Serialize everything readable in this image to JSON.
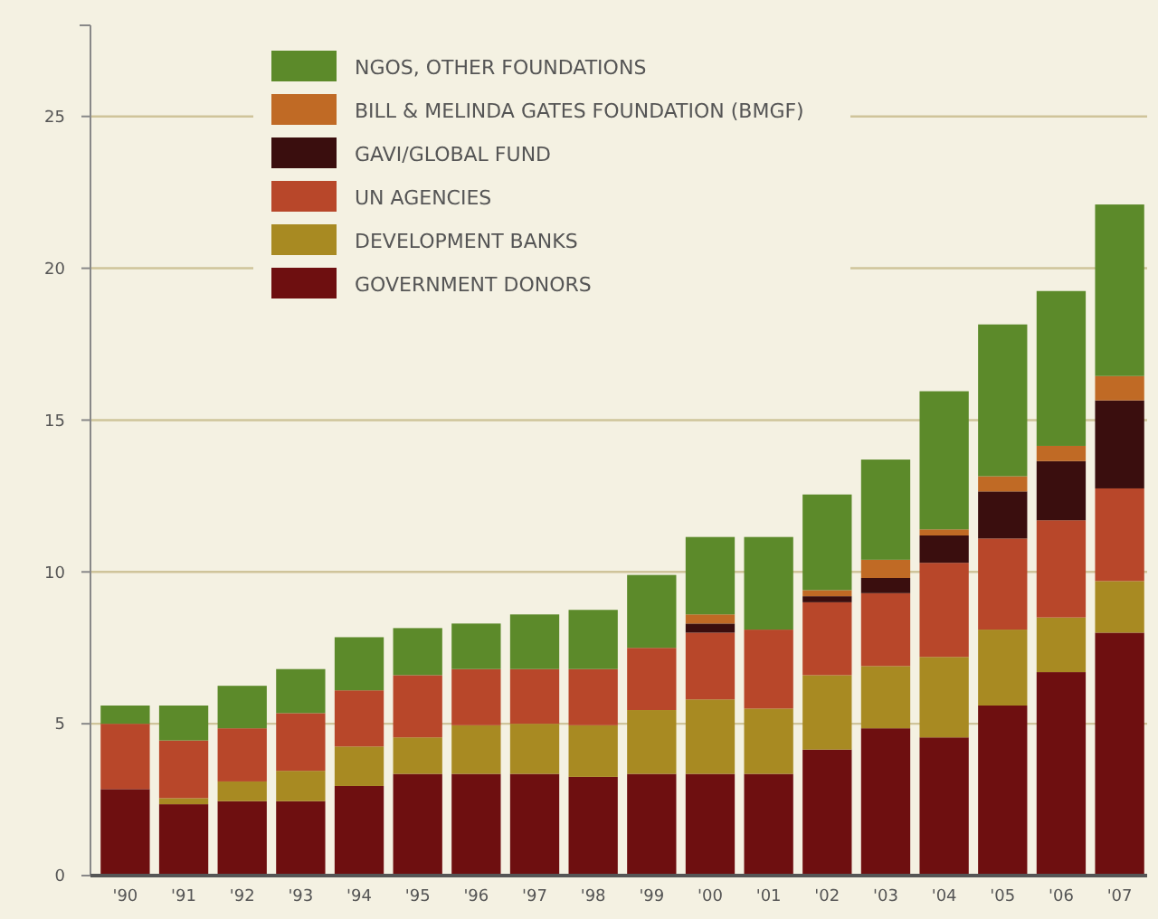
{
  "chart_data": {
    "type": "bar",
    "stacked": true,
    "categories": [
      "'90",
      "'91",
      "'92",
      "'93",
      "'94",
      "'95",
      "'96",
      "'97",
      "'98",
      "'99",
      "'00",
      "'01",
      "'02",
      "'03",
      "'04",
      "'05",
      "'06",
      "'07"
    ],
    "ylim": [
      0,
      28
    ],
    "yticks": [
      0,
      5,
      10,
      15,
      20,
      25
    ],
    "grid": "y",
    "legend": "top left",
    "series": [
      {
        "name": "GOVERNMENT DONORS",
        "color": "#6e0f10",
        "values": [
          2.85,
          2.35,
          2.45,
          2.45,
          2.95,
          3.35,
          3.35,
          3.35,
          3.25,
          3.35,
          3.35,
          3.35,
          4.15,
          4.85,
          4.55,
          5.6,
          6.7,
          8.0
        ]
      },
      {
        "name": "DEVELOPMENT BANKS",
        "color": "#a88a22",
        "values": [
          0,
          0.2,
          0.65,
          1.0,
          1.3,
          1.2,
          1.6,
          1.65,
          1.7,
          2.1,
          2.45,
          2.15,
          2.45,
          2.05,
          2.65,
          2.5,
          1.8,
          1.7
        ]
      },
      {
        "name": "UN AGENCIES",
        "color": "#b8472a",
        "values": [
          2.15,
          1.9,
          1.75,
          1.9,
          1.85,
          2.05,
          1.85,
          1.8,
          1.85,
          2.05,
          2.2,
          2.6,
          2.4,
          2.4,
          3.1,
          3.0,
          3.2,
          3.05
        ]
      },
      {
        "name": "GAVI/GLOBAL FUND",
        "color": "#3a0e0e",
        "values": [
          0,
          0,
          0,
          0,
          0,
          0,
          0,
          0,
          0,
          0,
          0.3,
          0,
          0.2,
          0.5,
          0.9,
          1.55,
          1.95,
          2.9
        ]
      },
      {
        "name": "BILL & MELINDA GATES FOUNDATION (BMGF)",
        "color": "#c06a25",
        "values": [
          0,
          0,
          0,
          0,
          0,
          0,
          0,
          0,
          0,
          0,
          0.3,
          0,
          0.2,
          0.6,
          0.2,
          0.5,
          0.5,
          0.8
        ]
      },
      {
        "name": "NGOS, OTHER FOUNDATIONS",
        "color": "#5c8a2a",
        "values": [
          0.6,
          1.15,
          1.4,
          1.45,
          1.75,
          1.55,
          1.5,
          1.8,
          1.95,
          2.4,
          2.55,
          3.05,
          3.15,
          3.3,
          4.55,
          5.0,
          5.1,
          5.65
        ]
      }
    ]
  }
}
